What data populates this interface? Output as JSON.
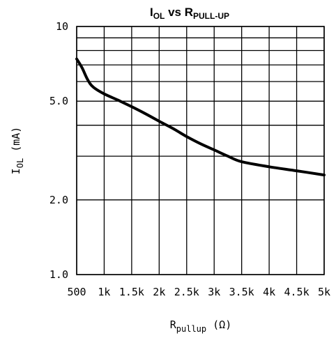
{
  "chart_data": {
    "type": "line",
    "title": {
      "main": "I",
      "main_sub": "OL",
      "mid": " vs R",
      "mid_sub": "PULL-UP"
    },
    "xlabel": {
      "main": "R",
      "sub": "pullup",
      "unit": " (Ω)"
    },
    "ylabel": {
      "main": "I",
      "sub": "OL",
      "unit": " (mA)"
    },
    "x_scale": "linear",
    "y_scale": "log",
    "xlim": [
      500,
      5000
    ],
    "ylim": [
      1,
      10
    ],
    "grid": true,
    "x_ticks": [
      {
        "value": 500,
        "label": "500"
      },
      {
        "value": 1000,
        "label": "1k"
      },
      {
        "value": 1500,
        "label": "1.5k"
      },
      {
        "value": 2000,
        "label": "2k"
      },
      {
        "value": 2500,
        "label": "2.5k"
      },
      {
        "value": 3000,
        "label": "3k"
      },
      {
        "value": 3500,
        "label": "3.5k"
      },
      {
        "value": 4000,
        "label": "4k"
      },
      {
        "value": 4500,
        "label": "4.5k"
      },
      {
        "value": 5000,
        "label": "5k"
      }
    ],
    "y_ticks": [
      {
        "value": 1,
        "label": "1.0"
      },
      {
        "value": 2,
        "label": "2.0"
      },
      {
        "value": 5,
        "label": "5.0"
      },
      {
        "value": 10,
        "label": "10"
      }
    ],
    "y_gridlines": [
      1,
      2,
      3,
      4,
      5,
      6,
      7,
      8,
      9,
      10
    ],
    "series": [
      {
        "x": [
          500,
          600,
          700,
          800,
          1000,
          1250,
          1500,
          1750,
          2000,
          2250,
          2500,
          2750,
          3000,
          3250,
          3500,
          4000,
          4500,
          5000
        ],
        "y": [
          7.4,
          6.8,
          6.1,
          5.7,
          5.35,
          5.05,
          4.75,
          4.45,
          4.15,
          3.88,
          3.6,
          3.37,
          3.18,
          3.0,
          2.85,
          2.72,
          2.62,
          2.52
        ]
      }
    ]
  }
}
